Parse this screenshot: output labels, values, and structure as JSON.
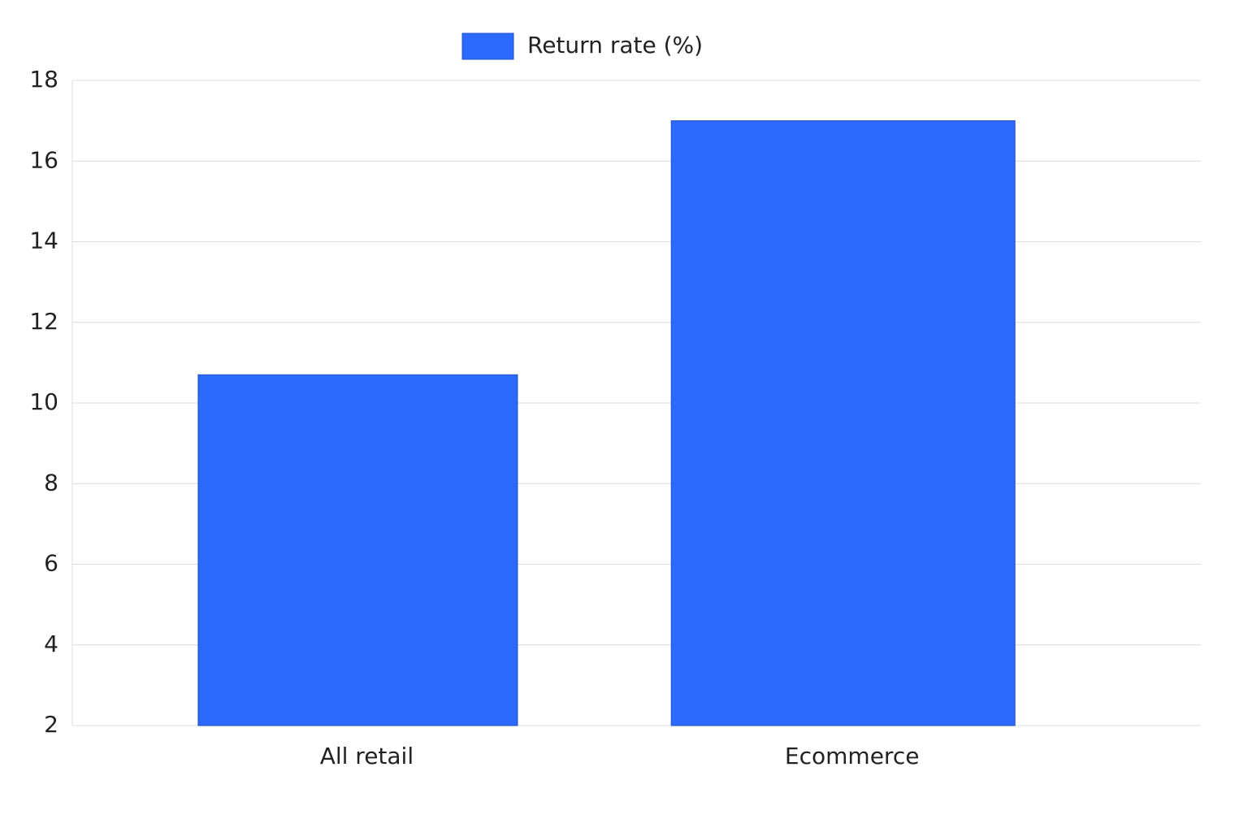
{
  "chart_data": {
    "type": "bar",
    "categories": [
      "All retail",
      "Ecommerce"
    ],
    "series": [
      {
        "name": "Return rate (%)",
        "color": "#2b69ff",
        "values": [
          10.7,
          17.0
        ]
      }
    ],
    "ylim": [
      2,
      18
    ],
    "yticks": [
      2,
      4,
      6,
      8,
      10,
      12,
      14,
      16,
      18
    ],
    "grid": true,
    "legend": "top"
  }
}
